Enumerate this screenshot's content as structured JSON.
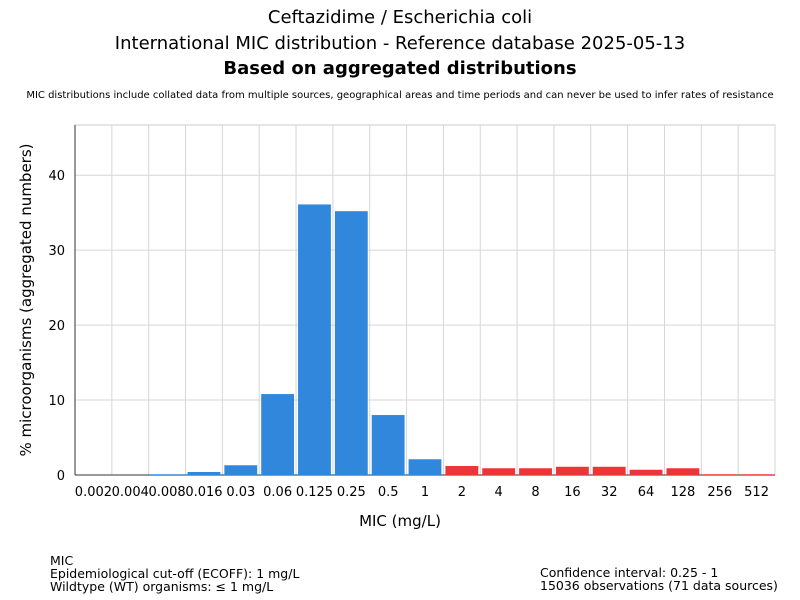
{
  "header": {
    "title1": "Ceftazidime / Escherichia coli",
    "title2": "International MIC distribution - Reference database 2025-05-13",
    "title3": "Based on aggregated distributions",
    "subtitle": "MIC distributions include collated data from multiple sources, geographical areas and time periods and can never be used to infer rates of resistance"
  },
  "chart_data": {
    "type": "bar",
    "title": "Ceftazidime / Escherichia coli",
    "xlabel": "MIC (mg/L)",
    "ylabel": "% microorganisms (aggregated numbers)",
    "ylim": [
      0,
      46.7
    ],
    "yticks": [
      0,
      10,
      20,
      30,
      40
    ],
    "grid": true,
    "categories": [
      "0.002",
      "0.004",
      "0.008",
      "0.016",
      "0.03",
      "0.06",
      "0.125",
      "0.25",
      "0.5",
      "1",
      "2",
      "4",
      "8",
      "16",
      "32",
      "64",
      "128",
      "256",
      "512"
    ],
    "values": [
      0,
      0,
      0.1,
      0.4,
      1.3,
      10.8,
      36.1,
      35.2,
      8.0,
      2.1,
      1.2,
      0.9,
      0.9,
      1.1,
      1.1,
      0.7,
      0.9,
      0.1,
      0.1
    ],
    "ecoff": "1",
    "colors": {
      "wildtype": "#3087dc",
      "nonwildtype": "#ed3535"
    }
  },
  "footer": {
    "left": [
      "MIC",
      "Epidemiological cut-off (ECOFF): 1 mg/L",
      "Wildtype (WT) organisms: ≤ 1 mg/L"
    ],
    "right": [
      "Confidence interval: 0.25 - 1",
      "15036 observations (71 data sources)"
    ]
  }
}
